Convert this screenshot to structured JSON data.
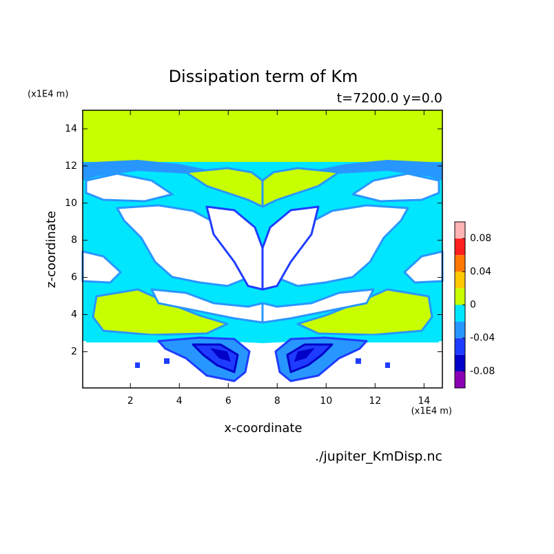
{
  "chart_data": {
    "type": "contour",
    "title": "Dissipation term of Km",
    "subtitle": "t=7200.0 y=0.0",
    "x_label": "x-coordinate",
    "y_label": "z-coordinate",
    "x_unit": "(x1E4 m)",
    "y_unit": "(x1E4 m)",
    "xlim": [
      0.05,
      14.75
    ],
    "ylim": [
      0.05,
      15
    ],
    "xticks": [
      2,
      4,
      6,
      8,
      10,
      12,
      14
    ],
    "yticks": [
      2,
      4,
      6,
      8,
      10,
      12,
      14
    ],
    "colorbar": {
      "levels": [
        -0.1,
        -0.08,
        -0.06,
        -0.04,
        -0.02,
        0,
        0.02,
        0.04,
        0.06,
        0.08,
        0.1
      ],
      "colors": [
        "#8c00b4",
        "#0000c8",
        "#1e3cff",
        "#2896ff",
        "#00e6ff",
        "#c8ff00",
        "#ffc800",
        "#ff7800",
        "#ff1e1e",
        "#ffb4b4"
      ],
      "ticks": [
        -0.08,
        -0.04,
        0,
        0.04,
        0.08
      ]
    },
    "source": "./jupiter_KmDisp.nc"
  }
}
